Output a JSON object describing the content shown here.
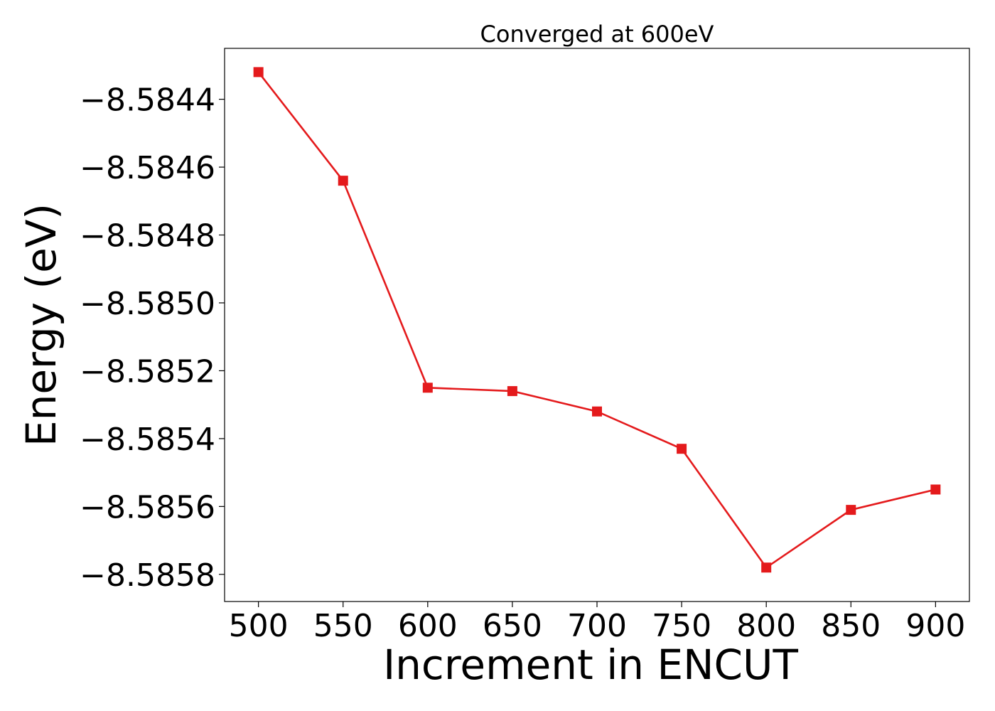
{
  "chart_data": {
    "type": "line",
    "title": "Converged at 600eV",
    "xlabel": "Increment in ENCUT",
    "ylabel": "Energy (eV)",
    "x": [
      500,
      550,
      600,
      650,
      700,
      750,
      800,
      850,
      900
    ],
    "series": [
      {
        "values": [
          -8.58432,
          -8.58464,
          -8.58525,
          -8.58526,
          -8.58532,
          -8.58543,
          -8.58578,
          -8.58561,
          -8.58555
        ],
        "color": "#e41a1c",
        "marker": "square"
      }
    ],
    "xticks": [
      500,
      550,
      600,
      650,
      700,
      750,
      800,
      850,
      900
    ],
    "xtick_labels": [
      "500",
      "550",
      "600",
      "650",
      "700",
      "750",
      "800",
      "850",
      "900"
    ],
    "yticks": [
      -8.5844,
      -8.5846,
      -8.5848,
      -8.585,
      -8.5852,
      -8.5854,
      -8.5856,
      -8.5858
    ],
    "ytick_labels": [
      "−8.5844",
      "−8.5846",
      "−8.5848",
      "−8.5850",
      "−8.5852",
      "−8.5854",
      "−8.5856",
      "−8.5858"
    ],
    "xlim": [
      480,
      920
    ],
    "ylim": [
      -8.58588,
      -8.58425
    ],
    "grid": false,
    "legend": "none"
  }
}
